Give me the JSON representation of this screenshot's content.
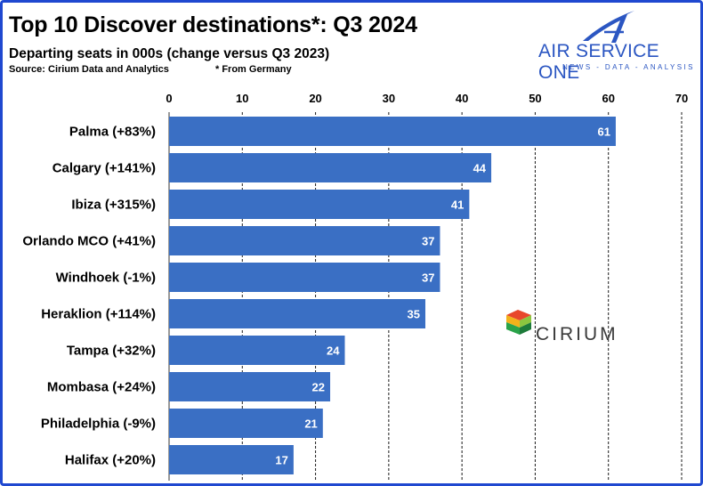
{
  "header": {
    "title": "Top 10 Discover destinations*: Q3 2024",
    "subtitle": "Departing seats in 000s (change versus Q3 2023)",
    "source": "Source: Cirium Data and Analytics",
    "footnote": "* From Germany"
  },
  "logos": {
    "air_service_one": "AIR SERVICE ONE",
    "air_service_one_tagline": "NEWS - DATA - ANALYSIS",
    "cirium": "CIRIUM"
  },
  "colors": {
    "bar": "#3a6fc4",
    "frame": "#1f48d0",
    "brand_blue": "#2b56c2",
    "grid": "#1a1a1a"
  },
  "chart_data": {
    "type": "bar",
    "orientation": "horizontal",
    "categories": [
      "Palma (+83%)",
      "Calgary (+141%)",
      "Ibiza (+315%)",
      "Orlando MCO (+41%)",
      "Windhoek (-1%)",
      "Heraklion (+114%)",
      "Tampa (+32%)",
      "Mombasa (+24%)",
      "Philadelphia (-9%)",
      "Halifax (+20%)"
    ],
    "values": [
      61,
      44,
      41,
      37,
      37,
      35,
      24,
      22,
      21,
      17
    ],
    "data_labels": [
      "61",
      "44",
      "41",
      "37",
      "37",
      "35",
      "24",
      "22",
      "21",
      "17"
    ],
    "xlim": [
      0,
      70
    ],
    "xticks": [
      "0",
      "10",
      "20",
      "30",
      "40",
      "50",
      "60",
      "70"
    ],
    "grid": "vertical dashed",
    "axis_position": "top"
  }
}
